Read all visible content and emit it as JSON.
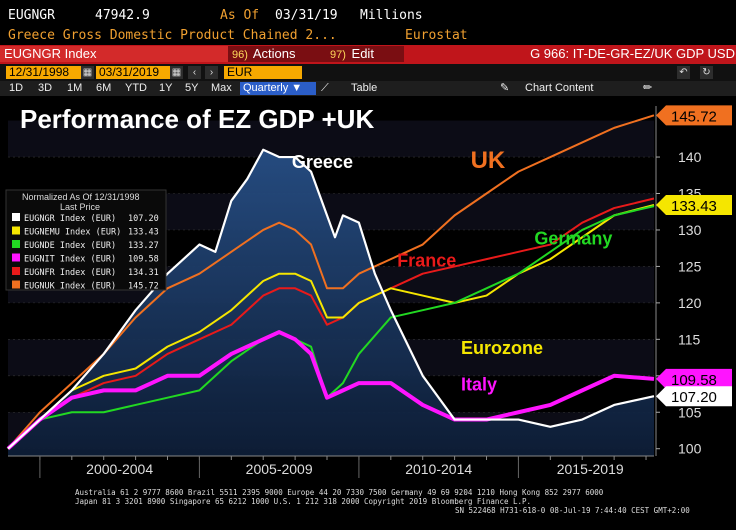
{
  "header": {
    "ticker": "EUGNGR",
    "value": "47942.9",
    "as_of_label": "As Of",
    "as_of_date": "03/31/19",
    "units": "Millions",
    "description": "Greece Gross Domestic Product Chained 2...",
    "source": "Eurostat"
  },
  "toolbar": {
    "security": "EUGNGR Index",
    "actions_num": "96)",
    "actions_label": "Actions",
    "edit_num": "97)",
    "edit_label": "Edit",
    "function_title": "G 966: IT-DE-GR-EZ/UK GDP USD"
  },
  "range": {
    "start": "12/31/1998",
    "end": "03/31/2019",
    "currency": "EUR"
  },
  "periods": [
    "1D",
    "3D",
    "1M",
    "6M",
    "YTD",
    "1Y",
    "5Y",
    "Max"
  ],
  "frequency": "Quarterly",
  "table_label": "Table",
  "chart_content_label": "Chart Content",
  "colors": {
    "greece": "#ffffff",
    "eurozone": "#f5e600",
    "germany": "#22d822",
    "italy": "#ff14ff",
    "france": "#e81a1a",
    "uk": "#f07020",
    "greece_fill": "#1b3a66",
    "bloomberg_red": "#c0151b",
    "bloomberg_amber": "#f7a900"
  },
  "chart_data": {
    "type": "line",
    "title": "Performance of EZ GDP +UK",
    "x_ticks": [
      "2000-2004",
      "2005-2009",
      "2010-2014",
      "2015-2019"
    ],
    "x_range": [
      1999.0,
      2019.25
    ],
    "y_range": [
      99,
      147
    ],
    "y_ticks": [
      100,
      105,
      110,
      115,
      120,
      125,
      130,
      135,
      140
    ],
    "legend": {
      "position": "left",
      "title": "Normalized As Of 12/31/1998",
      "subtitle": "Last Price",
      "entries": [
        {
          "key": "greece",
          "name": "EUGNGR Index (EUR)",
          "last": "107.20"
        },
        {
          "key": "eurozone",
          "name": "EUGNEMU Index (EUR)",
          "last": "133.43"
        },
        {
          "key": "germany",
          "name": "EUGNDE Index (EUR)",
          "last": "133.27"
        },
        {
          "key": "italy",
          "name": "EUGNIT Index (EUR)",
          "last": "109.58"
        },
        {
          "key": "france",
          "name": "EUGNFR Index (EUR)",
          "last": "134.31"
        },
        {
          "key": "uk",
          "name": "EUGNUK Index (EUR)",
          "last": "145.72"
        }
      ]
    },
    "annotations": [
      {
        "key": "greece",
        "text": "Greece"
      },
      {
        "key": "uk",
        "text": "UK"
      },
      {
        "key": "germany",
        "text": "Germany"
      },
      {
        "key": "france",
        "text": "France"
      },
      {
        "key": "eurozone",
        "text": "Eurozone"
      },
      {
        "key": "italy",
        "text": "Italy"
      }
    ],
    "price_tags": [
      {
        "key": "uk",
        "text": "145.72",
        "value": 145.72
      },
      {
        "key": "eurozone",
        "text": "133.43",
        "value": 133.43
      },
      {
        "key": "italy",
        "text": "109.58",
        "value": 109.58
      },
      {
        "key": "greece",
        "text": "107.20",
        "value": 107.2
      }
    ],
    "series": [
      {
        "key": "greece",
        "name": "Greece",
        "x": [
          1999,
          2000,
          2001,
          2002,
          2003,
          2004,
          2005,
          2005.5,
          2006,
          2006.5,
          2007,
          2007.5,
          2008,
          2008.5,
          2009,
          2009.25,
          2009.5,
          2010,
          2010.5,
          2011,
          2012,
          2013,
          2014,
          2015,
          2016,
          2017,
          2018,
          2019.25
        ],
        "values": [
          100,
          104,
          108,
          113,
          119,
          124,
          128,
          127,
          134,
          137,
          141,
          140,
          140,
          138,
          132,
          129,
          132,
          131,
          124,
          119,
          110,
          104,
          104,
          104,
          103,
          104,
          106,
          107.2
        ]
      },
      {
        "key": "eurozone",
        "name": "Eurozone",
        "x": [
          1999,
          2000,
          2001,
          2002,
          2003,
          2004,
          2005,
          2006,
          2007,
          2007.5,
          2008,
          2008.5,
          2009,
          2009.5,
          2010,
          2011,
          2012,
          2013,
          2014,
          2015,
          2016,
          2017,
          2018,
          2019.25
        ],
        "values": [
          100,
          104,
          108,
          110,
          111,
          114,
          116,
          119,
          123,
          124,
          124,
          123,
          118,
          118,
          120,
          122,
          121,
          120,
          121,
          124,
          126,
          129,
          132,
          133.43
        ]
      },
      {
        "key": "germany",
        "name": "Germany",
        "x": [
          1999,
          2000,
          2001,
          2002,
          2003,
          2004,
          2005,
          2006,
          2007,
          2007.5,
          2008,
          2008.5,
          2009,
          2009.5,
          2010,
          2011,
          2012,
          2013,
          2014,
          2015,
          2016,
          2017,
          2018,
          2019.25
        ],
        "values": [
          100,
          104,
          105,
          105,
          106,
          107,
          108,
          112,
          115,
          116,
          115,
          114,
          107,
          109,
          113,
          118,
          119,
          120,
          122,
          124,
          127,
          130,
          132,
          133.27
        ]
      },
      {
        "key": "italy",
        "name": "Italy",
        "x": [
          1999,
          2000,
          2001,
          2002,
          2003,
          2004,
          2005,
          2006,
          2007,
          2007.5,
          2008,
          2008.5,
          2009,
          2009.5,
          2010,
          2011,
          2012,
          2013,
          2014,
          2015,
          2016,
          2017,
          2018,
          2019.25
        ],
        "values": [
          100,
          104,
          107,
          108,
          108,
          110,
          110,
          113,
          115,
          116,
          115,
          113,
          107,
          108,
          109,
          109,
          106,
          104,
          104,
          105,
          106,
          108,
          110,
          109.58
        ]
      },
      {
        "key": "france",
        "name": "France",
        "x": [
          1999,
          2000,
          2001,
          2002,
          2003,
          2004,
          2005,
          2006,
          2007,
          2007.5,
          2008,
          2008.5,
          2009,
          2009.5,
          2010,
          2011,
          2012,
          2013,
          2014,
          2015,
          2016,
          2017,
          2018,
          2019.25
        ],
        "values": [
          100,
          104,
          107,
          109,
          110,
          113,
          115,
          117,
          121,
          122,
          122,
          121,
          117,
          118,
          120,
          122,
          124,
          125,
          126,
          127,
          128,
          131,
          133,
          134.31
        ]
      },
      {
        "key": "uk",
        "name": "UK",
        "x": [
          1999,
          2000,
          2001,
          2002,
          2003,
          2004,
          2005,
          2006,
          2007,
          2007.5,
          2008,
          2008.5,
          2009,
          2009.5,
          2010,
          2011,
          2012,
          2013,
          2014,
          2015,
          2016,
          2017,
          2018,
          2019.25
        ],
        "values": [
          100,
          105,
          109,
          113,
          118,
          122,
          124,
          127,
          130,
          131,
          130,
          128,
          122,
          122,
          124,
          126,
          128,
          132,
          135,
          138,
          140,
          142,
          144,
          145.72
        ]
      }
    ]
  },
  "footer": {
    "line1": "Australia 61 2 9777 8600 Brazil 5511 2395 9000 Europe 44 20 7330 7500 Germany 49 69 9204 1210 Hong Kong 852 2977 6000",
    "line2": "Japan 81 3 3201 8900        Singapore 65 6212 1000        U.S. 1 212 318 2000        Copyright 2019 Bloomberg Finance L.P.",
    "line3": "SN 522468 H731-618-0 08-Jul-19  7:44:40 CEST GMT+2:00"
  }
}
